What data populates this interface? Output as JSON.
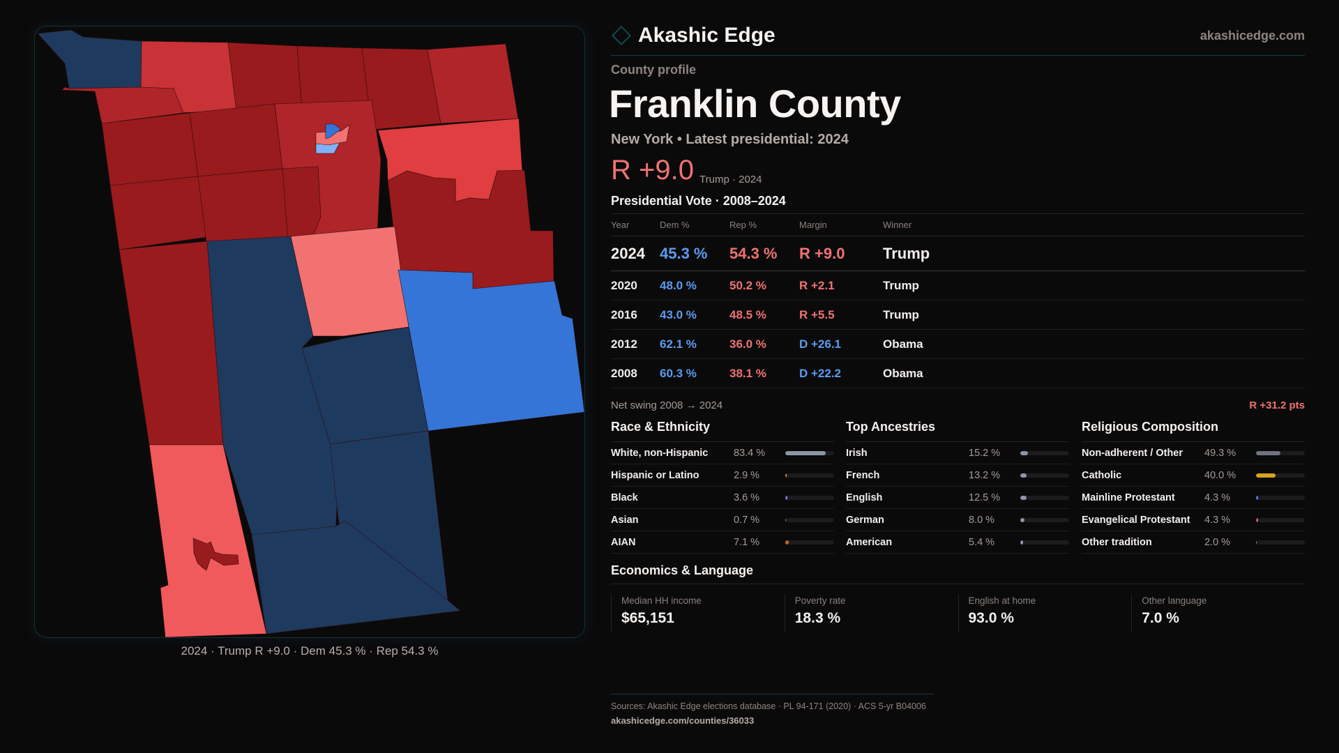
{
  "brand": {
    "name": "Akashic Edge",
    "site": "akashicedge.com",
    "logo_icon": "diamond-outline-icon"
  },
  "profile": {
    "eyebrow": "County profile",
    "title": "Franklin County",
    "state": "New York",
    "latest": "• Latest presidential: 2024",
    "margin": "R +9.0",
    "margin_sub": "Trump · 2024"
  },
  "votes": {
    "title": "Presidential Vote · 2008–2024",
    "headers": [
      "Year",
      "Dem %",
      "Rep %",
      "Margin",
      "Winner"
    ],
    "rows": [
      {
        "year": "2024",
        "dem": "45.3 %",
        "rep": "54.3 %",
        "margin": "R +9.0",
        "party": "R",
        "winner": "Trump"
      },
      {
        "year": "2020",
        "dem": "48.0 %",
        "rep": "50.2 %",
        "margin": "R +2.1",
        "party": "R",
        "winner": "Trump"
      },
      {
        "year": "2016",
        "dem": "43.0 %",
        "rep": "48.5 %",
        "margin": "R +5.5",
        "party": "R",
        "winner": "Trump"
      },
      {
        "year": "2012",
        "dem": "62.1 %",
        "rep": "36.0 %",
        "margin": "D +26.1",
        "party": "D",
        "winner": "Obama"
      },
      {
        "year": "2008",
        "dem": "60.3 %",
        "rep": "38.1 %",
        "margin": "D +22.2",
        "party": "D",
        "winner": "Obama"
      }
    ],
    "swing_label": "Net swing 2008 → 2024",
    "swing_value": "R +31.2 pts"
  },
  "race": {
    "title": "Race & Ethnicity",
    "items": [
      {
        "label": "White, non-Hispanic",
        "value": "83.4 %",
        "pct": 83.4,
        "color": "#8c96a8"
      },
      {
        "label": "Hispanic or Latino",
        "value": "2.9 %",
        "pct": 2.9,
        "color": "#d98a2b"
      },
      {
        "label": "Black",
        "value": "3.6 %",
        "pct": 3.6,
        "color": "#8b6fd6"
      },
      {
        "label": "Asian",
        "value": "0.7 %",
        "pct": 0.7,
        "color": "#2fb78f"
      },
      {
        "label": "AIAN",
        "value": "7.1 %",
        "pct": 7.1,
        "color": "#c8661c"
      }
    ]
  },
  "ancestry": {
    "title": "Top Ancestries",
    "items": [
      {
        "label": "Irish",
        "value": "15.2 %",
        "pct": 15.2,
        "color": "#8c96a8"
      },
      {
        "label": "French",
        "value": "13.2 %",
        "pct": 13.2,
        "color": "#8c96a8"
      },
      {
        "label": "English",
        "value": "12.5 %",
        "pct": 12.5,
        "color": "#8c96a8"
      },
      {
        "label": "German",
        "value": "8.0 %",
        "pct": 8.0,
        "color": "#8c96a8"
      },
      {
        "label": "American",
        "value": "5.4 %",
        "pct": 5.4,
        "color": "#8c96a8"
      }
    ]
  },
  "religion": {
    "title": "Religious Composition",
    "items": [
      {
        "label": "Non-adherent / Other",
        "value": "49.3 %",
        "pct": 49.3,
        "color": "#6f7380"
      },
      {
        "label": "Catholic",
        "value": "40.0 %",
        "pct": 40.0,
        "color": "#d8a31e"
      },
      {
        "label": "Mainline Protestant",
        "value": "4.3 %",
        "pct": 4.3,
        "color": "#4a86e0"
      },
      {
        "label": "Evangelical Protestant",
        "value": "4.3 %",
        "pct": 4.3,
        "color": "#e0585a"
      },
      {
        "label": "Other tradition",
        "value": "2.0 %",
        "pct": 2.0,
        "color": "#8c96a8"
      }
    ]
  },
  "economics": {
    "title": "Economics & Language",
    "stats": [
      {
        "label": "Median HH income",
        "value": "$65,151"
      },
      {
        "label": "Poverty rate",
        "value": "18.3 %"
      },
      {
        "label": "English at home",
        "value": "93.0 %"
      },
      {
        "label": "Other language",
        "value": "7.0 %"
      }
    ]
  },
  "map": {
    "caption": "2024 · Trump  R +9.0 · Dem 45.3 % · Rep 54.3 %",
    "colors": {
      "safe_r": "#991b1e",
      "likely_r": "#b02529",
      "lean_r": "#c93236",
      "tilt_r": "#e03e40",
      "light_r": "#f15a5c",
      "pale_r": "#f27272",
      "safe_d": "#1f3a5f",
      "lean_d": "#3575d8",
      "light_d": "#7fb2f5"
    }
  },
  "footer": {
    "sources": "Sources: Akashic Edge elections database · PL 94-171 (2020) · ACS 5-yr B04006",
    "url": "akashicedge.com/counties/36033"
  }
}
